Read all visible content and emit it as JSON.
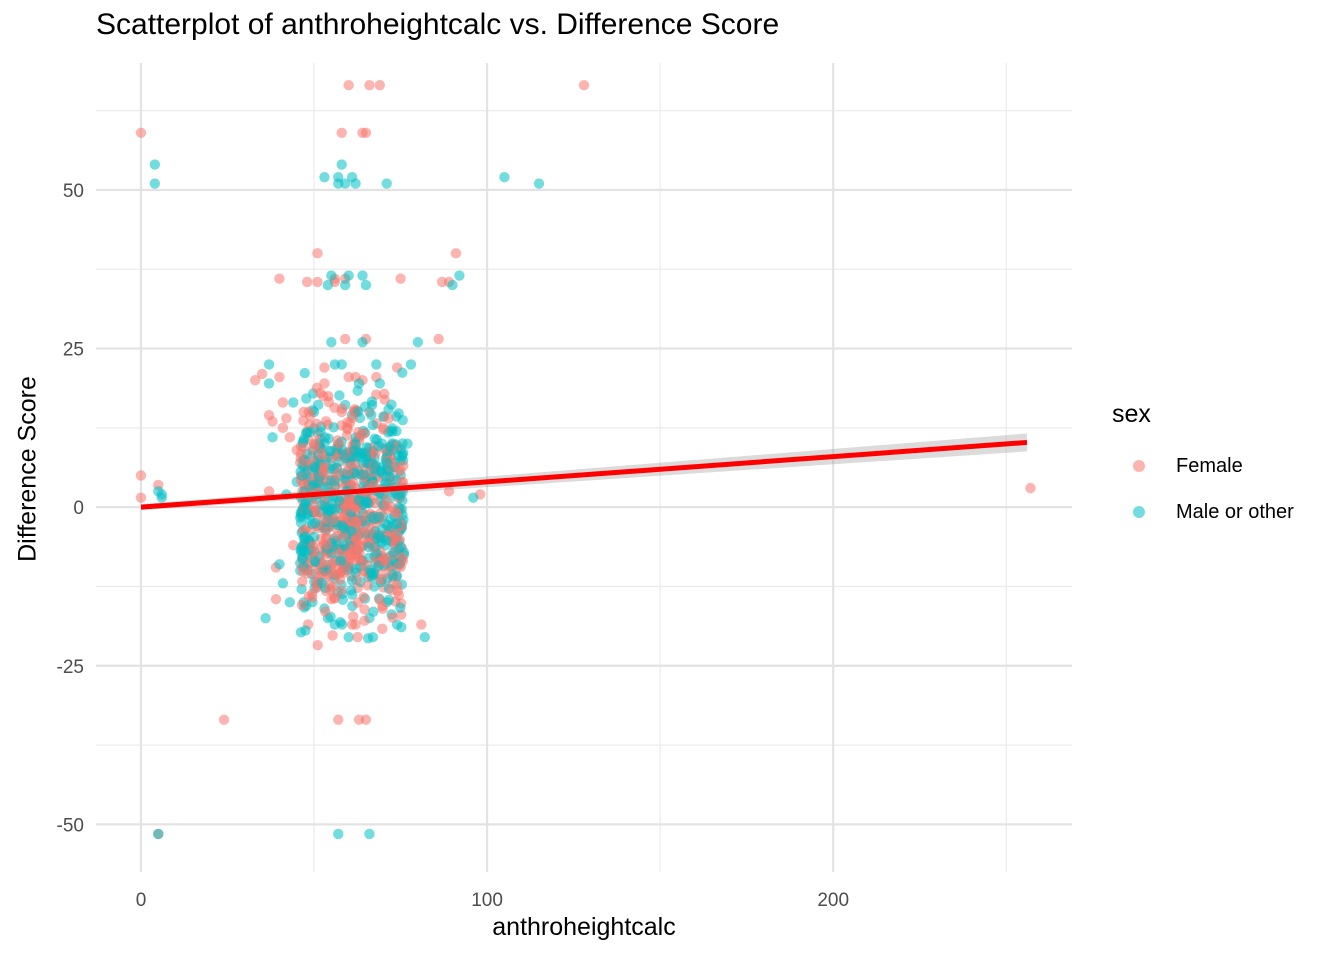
{
  "chart_data": {
    "type": "scatter",
    "title": "Scatterplot of anthroheightcalc vs. Difference Score",
    "xlabel": "anthroheightcalc",
    "ylabel": "Difference Score",
    "xlim": [
      -13,
      269
    ],
    "ylim": [
      -57.5,
      70
    ],
    "x_ticks": [
      0,
      100,
      200
    ],
    "y_ticks": [
      -50,
      -25,
      0,
      25,
      50
    ],
    "grid": true,
    "legend": {
      "title": "sex",
      "position": "right",
      "entries": [
        {
          "label": "Female",
          "color": "#F8766D"
        },
        {
          "label": "Male or other",
          "color": "#00BFC4"
        }
      ]
    },
    "trend_line": {
      "color": "#FF0000",
      "x": [
        0,
        256
      ],
      "y": [
        0,
        10.2
      ],
      "confidence_band": true
    },
    "series": [
      {
        "name": "Female",
        "color": "#F8766D",
        "points": [
          [
            0,
            59
          ],
          [
            0,
            5
          ],
          [
            0,
            1.5
          ],
          [
            5,
            3.5
          ],
          [
            5,
            -51.5
          ],
          [
            24,
            -33.5
          ],
          [
            33,
            20
          ],
          [
            35,
            21
          ],
          [
            37,
            14.5
          ],
          [
            37,
            2.5
          ],
          [
            38,
            13.5
          ],
          [
            39,
            -9.5
          ],
          [
            39,
            -14.5
          ],
          [
            40,
            36
          ],
          [
            40,
            20.5
          ],
          [
            41,
            16.5
          ],
          [
            41,
            12.5
          ],
          [
            42,
            14
          ],
          [
            43,
            11
          ],
          [
            44,
            -6
          ],
          [
            45,
            9
          ],
          [
            46,
            7
          ],
          [
            47,
            15
          ],
          [
            48,
            12
          ],
          [
            48,
            35.5
          ],
          [
            49,
            -8
          ],
          [
            50,
            10
          ],
          [
            51,
            40
          ],
          [
            51,
            35.5
          ],
          [
            52,
            5
          ],
          [
            52,
            -5
          ],
          [
            53,
            22
          ],
          [
            53,
            19.5
          ],
          [
            54,
            13
          ],
          [
            54,
            -2
          ],
          [
            55,
            -14.5
          ],
          [
            56,
            36
          ],
          [
            56,
            35.5
          ],
          [
            57,
            -33.5
          ],
          [
            57,
            8
          ],
          [
            58,
            59
          ],
          [
            58,
            15
          ],
          [
            58,
            -10
          ],
          [
            59,
            36
          ],
          [
            59,
            26.5
          ],
          [
            60,
            66.5
          ],
          [
            60,
            20.5
          ],
          [
            60,
            2
          ],
          [
            61,
            -18.5
          ],
          [
            62,
            -18.5
          ],
          [
            62,
            20.5
          ],
          [
            63,
            -33.5
          ],
          [
            63,
            11
          ],
          [
            64,
            59
          ],
          [
            64,
            20
          ],
          [
            65,
            59
          ],
          [
            65,
            -33.5
          ],
          [
            65,
            26.5
          ],
          [
            66,
            66.5
          ],
          [
            66,
            15
          ],
          [
            67,
            4
          ],
          [
            68,
            20.5
          ],
          [
            68,
            -5
          ],
          [
            69,
            66.5
          ],
          [
            70,
            12.5
          ],
          [
            70,
            -8
          ],
          [
            72,
            9
          ],
          [
            74,
            22
          ],
          [
            75,
            36
          ],
          [
            76,
            3
          ],
          [
            81,
            -18.5
          ],
          [
            86,
            26.5
          ],
          [
            87,
            35.5
          ],
          [
            89,
            35.5
          ],
          [
            89,
            2.5
          ],
          [
            91,
            40
          ],
          [
            98,
            2
          ],
          [
            128,
            66.5
          ],
          [
            257,
            3
          ]
        ]
      },
      {
        "name": "Male or other",
        "color": "#00BFC4",
        "points": [
          [
            4,
            54
          ],
          [
            4,
            51
          ],
          [
            5,
            2.5
          ],
          [
            6,
            2
          ],
          [
            6,
            1.5
          ],
          [
            5,
            -51.5
          ],
          [
            36,
            -17.5
          ],
          [
            37,
            19.5
          ],
          [
            37,
            22.5
          ],
          [
            38,
            11
          ],
          [
            40,
            -9
          ],
          [
            41,
            -12
          ],
          [
            42,
            2
          ],
          [
            43,
            -15
          ],
          [
            44,
            16.5
          ],
          [
            45,
            4
          ],
          [
            46,
            -10
          ],
          [
            47,
            -15
          ],
          [
            48,
            0
          ],
          [
            50,
            15
          ],
          [
            51,
            -12
          ],
          [
            53,
            52
          ],
          [
            54,
            35
          ],
          [
            54,
            -17.5
          ],
          [
            55,
            26
          ],
          [
            55,
            36.5
          ],
          [
            56,
            22.5
          ],
          [
            56,
            -18.5
          ],
          [
            57,
            52
          ],
          [
            57,
            51
          ],
          [
            57,
            -51.5
          ],
          [
            58,
            54
          ],
          [
            58,
            22.5
          ],
          [
            59,
            51
          ],
          [
            59,
            35
          ],
          [
            60,
            36.5
          ],
          [
            60,
            -20.5
          ],
          [
            61,
            52
          ],
          [
            62,
            15
          ],
          [
            62,
            51
          ],
          [
            63,
            19.5
          ],
          [
            64,
            36.5
          ],
          [
            64,
            26
          ],
          [
            65,
            35
          ],
          [
            66,
            -17.5
          ],
          [
            66,
            -51.5
          ],
          [
            67,
            -20.5
          ],
          [
            68,
            22.5
          ],
          [
            69,
            19.5
          ],
          [
            71,
            51
          ],
          [
            71,
            -15
          ],
          [
            72,
            12
          ],
          [
            73,
            9
          ],
          [
            74,
            -18.5
          ],
          [
            75,
            2
          ],
          [
            76,
            -7.5
          ],
          [
            77,
            10
          ],
          [
            78,
            22.5
          ],
          [
            80,
            26
          ],
          [
            82,
            -20.5
          ],
          [
            90,
            35
          ],
          [
            92,
            36.5
          ],
          [
            96,
            1.5
          ],
          [
            105,
            52
          ],
          [
            115,
            51
          ]
        ]
      }
    ]
  }
}
